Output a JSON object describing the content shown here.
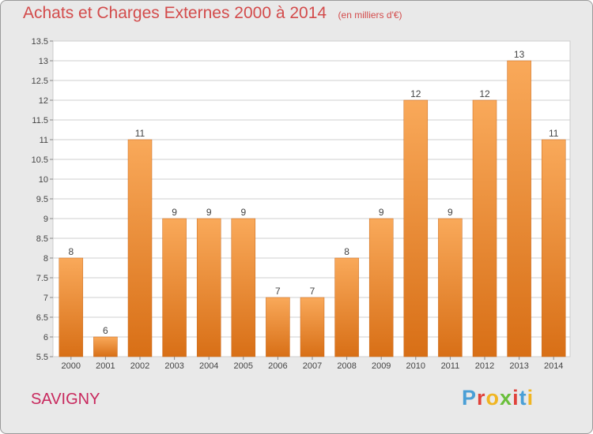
{
  "chart_data": {
    "type": "bar",
    "title": "Achats et Charges Externes 2000 à 2014",
    "subtitle": "(en milliers d'€)",
    "categories": [
      "2000",
      "2001",
      "2002",
      "2003",
      "2004",
      "2005",
      "2006",
      "2007",
      "2008",
      "2009",
      "2010",
      "2011",
      "2012",
      "2013",
      "2014"
    ],
    "values": [
      8,
      6,
      11,
      9,
      9,
      9,
      7,
      7,
      8,
      9,
      12,
      9,
      12,
      13,
      11
    ],
    "ylim": [
      5.5,
      13.5
    ],
    "yticks": [
      "5.5",
      "6",
      "6.5",
      "7",
      "7.5",
      "8",
      "8.5",
      "9",
      "9.5",
      "10",
      "10.5",
      "11",
      "11.5",
      "12",
      "12.5",
      "13",
      "13.5"
    ],
    "grid": true,
    "xlabel": "",
    "ylabel": ""
  },
  "footer": {
    "city": "SAVIGNY",
    "brand_letters": [
      "P",
      "r",
      "o",
      "x",
      "i",
      "t",
      "i"
    ]
  },
  "colors": {
    "bar_top": "#f9a95a",
    "bar_bottom": "#d86f16",
    "title": "#d34b4b",
    "city": "#c8285d",
    "background": "#e9e9e9",
    "brand": [
      "#4a9fd6",
      "#e0413a",
      "#f0b522",
      "#6abf3b",
      "#e0413a",
      "#4a9fd6",
      "#f0b522"
    ]
  }
}
